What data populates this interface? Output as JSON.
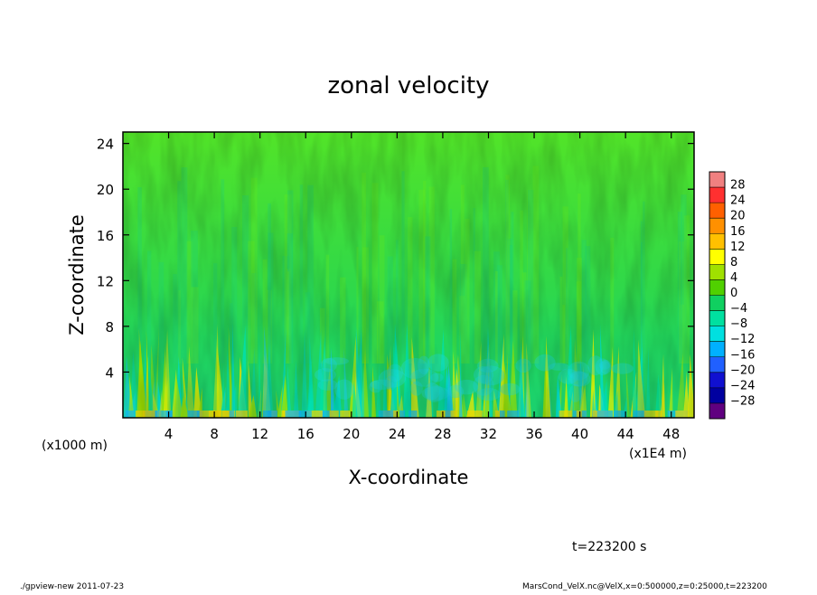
{
  "chart_data": {
    "type": "heatmap",
    "title": "zonal velocity",
    "xlabel": "X-coordinate",
    "ylabel": "Z-coordinate",
    "x_unit_left": "(x1000 m)",
    "x_unit_right": "(x1E4 m)",
    "xlim": [
      0,
      50
    ],
    "ylim": [
      0,
      25
    ],
    "x_ticks": [
      4,
      8,
      12,
      16,
      20,
      24,
      28,
      32,
      36,
      40,
      44,
      48
    ],
    "x_tick_labels": [
      "4",
      "8",
      "12",
      "16",
      "20",
      "24",
      "28",
      "32",
      "36",
      "40",
      "44",
      "48"
    ],
    "y_ticks": [
      4,
      8,
      12,
      16,
      20,
      24
    ],
    "y_tick_labels": [
      "4",
      "8",
      "12",
      "16",
      "20",
      "24"
    ],
    "colorbar": {
      "levels": [
        28,
        24,
        20,
        16,
        12,
        8,
        4,
        0,
        -4,
        -8,
        -12,
        -16,
        -20,
        -24,
        -28
      ],
      "labels": [
        "28",
        "24",
        "20",
        "16",
        "12",
        "8",
        "4",
        "0",
        "−4",
        "−8",
        "−12",
        "−16",
        "−20",
        "−24",
        "−28"
      ],
      "colors": [
        "#f08080",
        "#ff3030",
        "#ff6000",
        "#ff9000",
        "#ffc000",
        "#ffff00",
        "#a0e000",
        "#50d000",
        "#10d060",
        "#00e0a0",
        "#00e0e0",
        "#00b0ff",
        "#2060ff",
        "#1010d0",
        "#0000a0",
        "#600080"
      ]
    },
    "field_description": "mostly near 0 (green) above z=8; strong alternating positive/negative streaks below z=8"
  },
  "annotations": {
    "time_label": "t=223200 s",
    "footer_left": "./gpview-new   2011-07-23",
    "footer_right": "MarsCond_VelX.nc@VelX,x=0:500000,z=0:25000,t=223200"
  }
}
